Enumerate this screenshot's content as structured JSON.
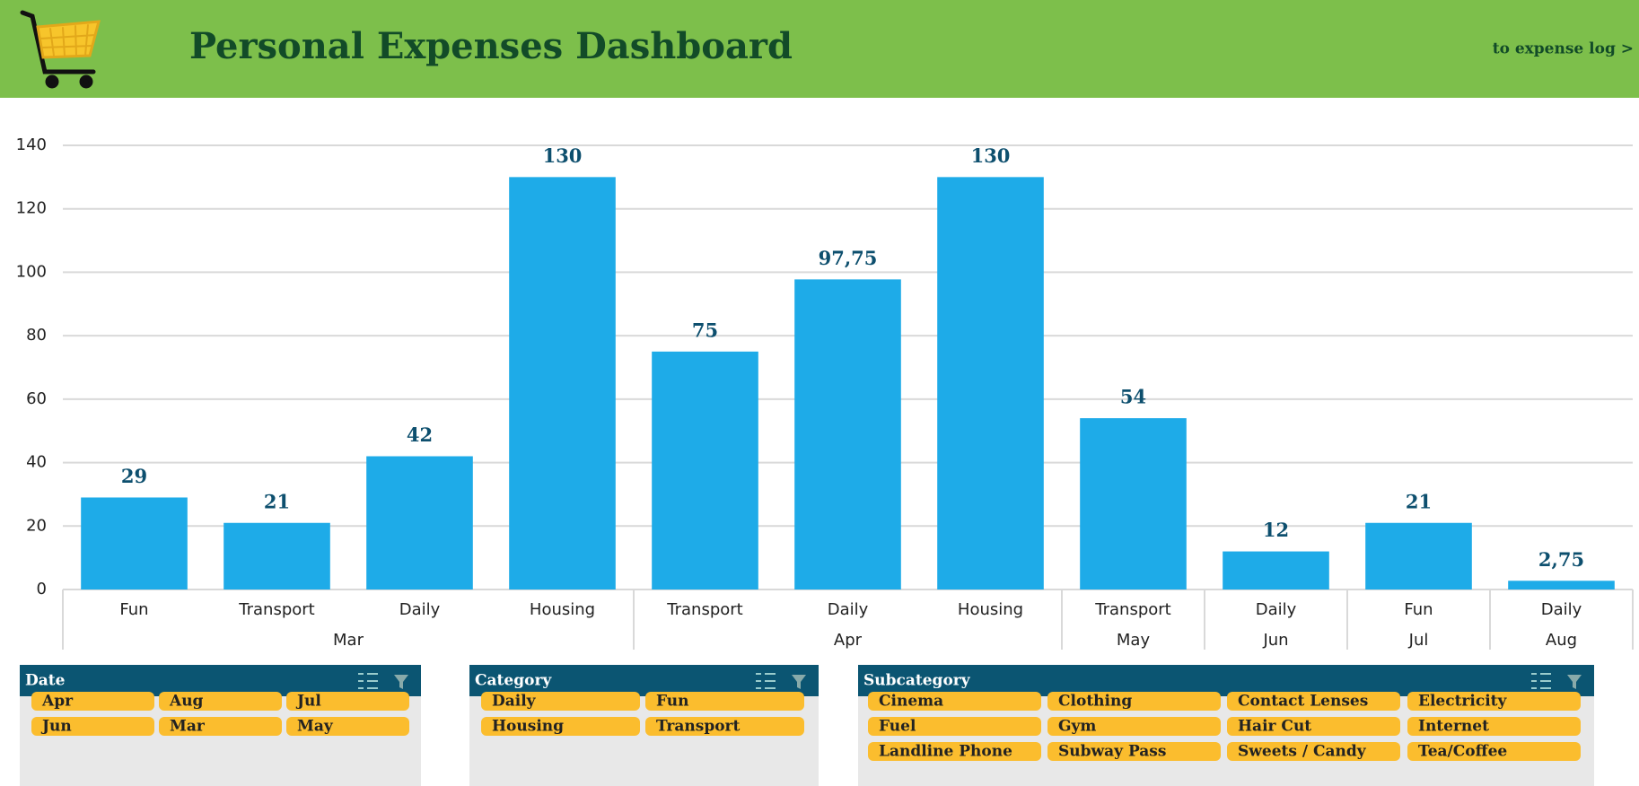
{
  "header": {
    "title": "Personal Expenses Dashboard",
    "link": "to expense log >"
  },
  "chart_data": {
    "type": "bar",
    "categories": [
      "Fun",
      "Transport",
      "Daily",
      "Housing",
      "Transport",
      "Daily",
      "Housing",
      "Transport",
      "Daily",
      "Fun",
      "Daily"
    ],
    "groups": [
      {
        "name": "Mar",
        "span": 4
      },
      {
        "name": "Apr",
        "span": 3
      },
      {
        "name": "May",
        "span": 1
      },
      {
        "name": "Jun",
        "span": 1
      },
      {
        "name": "Jul",
        "span": 1
      },
      {
        "name": "Aug",
        "span": 1
      }
    ],
    "values": [
      29,
      21,
      42,
      130,
      75,
      97.75,
      130,
      54,
      12,
      21,
      2.75
    ],
    "value_labels": [
      "29",
      "21",
      "42",
      "130",
      "75",
      "97,75",
      "130",
      "54",
      "12",
      "21",
      "2,75"
    ],
    "color": "#1eabe8",
    "ylim": [
      0,
      140
    ],
    "yticks": [
      0,
      20,
      40,
      60,
      80,
      100,
      120,
      140
    ],
    "grid": true
  },
  "slicers": [
    {
      "title": "Date",
      "items": [
        "Apr",
        "Aug",
        "Jul",
        "Jun",
        "Mar",
        "May"
      ]
    },
    {
      "title": "Category",
      "items": [
        "Daily",
        "Fun",
        "Housing",
        "Transport"
      ]
    },
    {
      "title": "Subcategory",
      "items": [
        "Cinema",
        "Clothing",
        "Contact Lenses",
        "Electricity",
        "Fuel",
        "Gym",
        "Hair Cut",
        "Internet",
        "Landline Phone",
        "Subway Pass",
        "Sweets / Candy",
        "Tea/Coffee"
      ]
    }
  ]
}
